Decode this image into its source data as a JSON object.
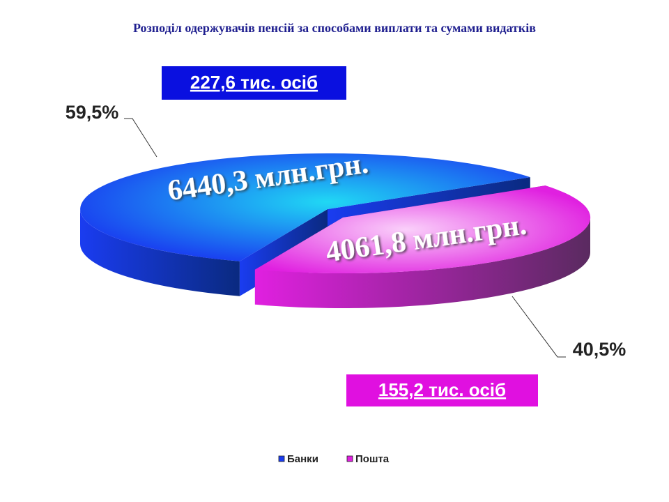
{
  "chart_data": {
    "type": "pie",
    "title": "Розподіл одержувачів пенсій за способами виплати та сумами видатків",
    "categories": [
      "Банки",
      "Пошта"
    ],
    "values": [
      59.5,
      40.5
    ],
    "value_labels": [
      "59,5%",
      "40,5%"
    ],
    "colors": [
      "#1a3cf0",
      "#e020e0"
    ],
    "amount_labels": [
      "6440,3 млн.грн.",
      "4061,8 млн.грн."
    ],
    "people_labels": [
      "227,6 тис. осіб",
      "155,2 тис. осіб"
    ],
    "legend": "bottom"
  }
}
